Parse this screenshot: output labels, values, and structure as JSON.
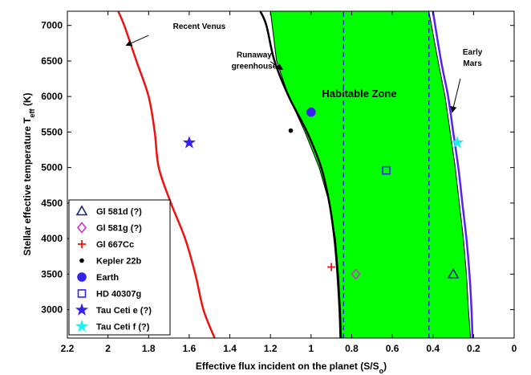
{
  "chart_data": {
    "type": "line",
    "xlabel": "Effective flux incident on the planet (S/S",
    "xlabel_sub": "o",
    "xlabel_end": ")",
    "ylabel": "Stellar effective temperature T",
    "ylabel_sub": "eff",
    "ylabel_end": " (K)",
    "xlim": [
      2.2,
      0
    ],
    "x_reversed": true,
    "ylim": [
      2600,
      7200
    ],
    "xticks": [
      2.2,
      2,
      1.8,
      1.6,
      1.4,
      1.2,
      1,
      0.8,
      0.6,
      0.4,
      0.2,
      0
    ],
    "xtick_labels": [
      "2.2",
      "2",
      "1.8",
      "1.6",
      "1.4",
      "1.2",
      "1",
      "0.8",
      "0.6",
      "0.4",
      "0.2",
      "0"
    ],
    "yticks": [
      3000,
      3500,
      4000,
      4500,
      5000,
      5500,
      6000,
      6500,
      7000
    ],
    "ytick_labels": [
      "3000",
      "3500",
      "4000",
      "4500",
      "5000",
      "5500",
      "6000",
      "6500",
      "7000"
    ],
    "zone_label": "Habitable Zone",
    "zone_color": "#00ff00",
    "zone_inner": [
      [
        1.2,
        7200
      ],
      [
        1.17,
        6500
      ],
      [
        1.11,
        6000
      ],
      [
        1.03,
        5500
      ],
      [
        0.96,
        5000
      ],
      [
        0.91,
        4500
      ],
      [
        0.88,
        4000
      ],
      [
        0.865,
        3500
      ],
      [
        0.855,
        3000
      ],
      [
        0.85,
        2600
      ]
    ],
    "zone_outer": [
      [
        0.42,
        7200
      ],
      [
        0.375,
        6500
      ],
      [
        0.34,
        6000
      ],
      [
        0.315,
        5500
      ],
      [
        0.29,
        5000
      ],
      [
        0.27,
        4500
      ],
      [
        0.25,
        4000
      ],
      [
        0.235,
        3500
      ],
      [
        0.225,
        3000
      ],
      [
        0.215,
        2600
      ]
    ],
    "series": [
      {
        "role": "recent-venus",
        "color": "#ee1111",
        "width": 2.5,
        "points": [
          [
            1.95,
            7200
          ],
          [
            1.92,
            7000
          ],
          [
            1.86,
            6500
          ],
          [
            1.8,
            6000
          ],
          [
            1.77,
            5500
          ],
          [
            1.75,
            5000
          ],
          [
            1.69,
            4500
          ],
          [
            1.62,
            4000
          ],
          [
            1.57,
            3500
          ],
          [
            1.53,
            3000
          ],
          [
            1.475,
            2600
          ]
        ]
      },
      {
        "role": "runaway-greenhouse",
        "color": "#000000",
        "width": 2.5,
        "points": [
          [
            1.25,
            7200
          ],
          [
            1.22,
            7000
          ],
          [
            1.18,
            6500
          ],
          [
            1.11,
            6000
          ],
          [
            1.02,
            5500
          ],
          [
            0.95,
            5000
          ],
          [
            0.91,
            4500
          ],
          [
            0.885,
            4000
          ],
          [
            0.87,
            3500
          ],
          [
            0.86,
            3000
          ],
          [
            0.855,
            2600
          ]
        ]
      },
      {
        "role": "early-mars",
        "color": "#5522ee",
        "width": 2.5,
        "points": [
          [
            0.4,
            7200
          ],
          [
            0.36,
            6500
          ],
          [
            0.325,
            6000
          ],
          [
            0.3,
            5500
          ],
          [
            0.275,
            5000
          ],
          [
            0.255,
            4500
          ],
          [
            0.235,
            4000
          ],
          [
            0.22,
            3500
          ],
          [
            0.21,
            3000
          ],
          [
            0.205,
            2600
          ]
        ]
      },
      {
        "role": "dashed-1",
        "color": "#2222dd",
        "width": 1.5,
        "dashed": true,
        "points": [
          [
            0.84,
            2600
          ],
          [
            0.84,
            7200
          ]
        ]
      },
      {
        "role": "dashed-2",
        "color": "#2222dd",
        "width": 1.5,
        "dashed": true,
        "points": [
          [
            0.42,
            2600
          ],
          [
            0.42,
            7200
          ]
        ]
      }
    ],
    "annotations": [
      {
        "text": "Recent Venus",
        "x": 1.68,
        "y": 6950,
        "align": "start",
        "arrow_from": [
          1.8,
          6860
        ],
        "arrow_to": [
          1.91,
          6720
        ]
      },
      {
        "text": "Runaway",
        "x": 1.28,
        "y": 6550,
        "align": "middle",
        "arrow_from": [
          1.2,
          6490
        ],
        "arrow_to": [
          1.14,
          6380
        ]
      },
      {
        "text": "greenhouse",
        "x": 1.28,
        "y": 6390,
        "align": "middle"
      },
      {
        "text": "Early",
        "x": 0.205,
        "y": 6590,
        "align": "middle",
        "arrow_from": [
          0.265,
          6250
        ],
        "arrow_to": [
          0.305,
          5780
        ]
      },
      {
        "text": "Mars",
        "x": 0.205,
        "y": 6430,
        "align": "middle"
      }
    ],
    "points": [
      {
        "label": "Gl 581d (?)",
        "marker": "triangle",
        "color": "#1a237e",
        "x": 0.3,
        "y": 3500
      },
      {
        "label": "Gl 581g (?)",
        "marker": "diamond",
        "color": "#cc33cc",
        "x": 0.78,
        "y": 3500
      },
      {
        "label": "Gl 667Cc",
        "marker": "plus",
        "color": "#ee1111",
        "x": 0.9,
        "y": 3600
      },
      {
        "label": "Kepler 22b",
        "marker": "dot",
        "color": "#000000",
        "x": 1.1,
        "y": 5520
      },
      {
        "label": "Earth",
        "marker": "circle",
        "color": "#3322ee",
        "x": 1.0,
        "y": 5780
      },
      {
        "label": "HD 40307g",
        "marker": "square",
        "color": "#3322ee",
        "x": 0.63,
        "y": 4960
      },
      {
        "label": "Tau Ceti e (?)",
        "marker": "star",
        "color": "#3322ee",
        "x": 1.6,
        "y": 5350
      },
      {
        "label": "Tau Ceti f (?)",
        "marker": "star",
        "color": "#22eeee",
        "x": 0.28,
        "y": 5350
      }
    ],
    "legend_position": "bottom-left"
  }
}
